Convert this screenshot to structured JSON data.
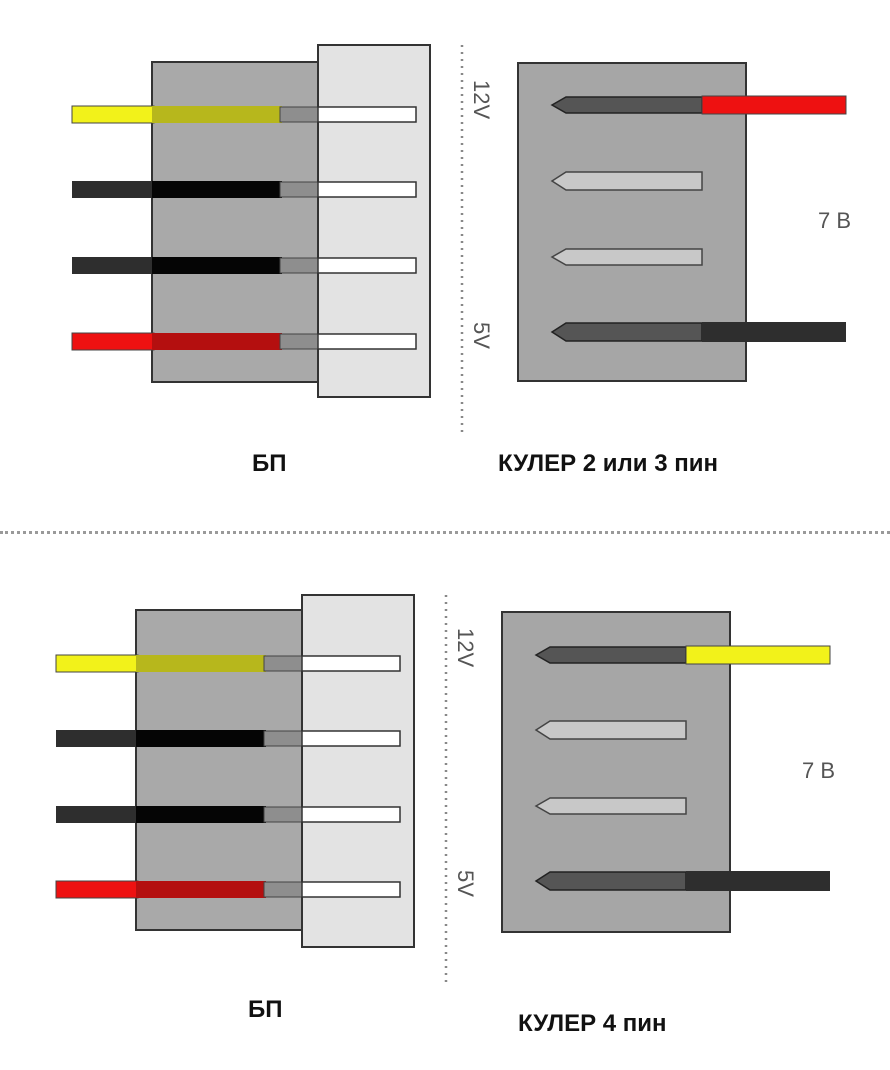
{
  "colors": {
    "yellow": "#f2f21a",
    "black_wire": "#2e2e2e",
    "red": "#ee1111",
    "psu_body": "#a9a9a9",
    "psu_sleeve": "#e3e3e3",
    "fan_body": "#a6a6a6"
  },
  "panels": [
    {
      "psu_caption": "БП",
      "fan_caption": "КУЛЕР 2 или 3 пин",
      "label_12v": "12V",
      "label_5v": "5V",
      "result_label": "7 В",
      "psu_wires": [
        "yellow",
        "black",
        "black",
        "red"
      ],
      "fan_wire_top": "red",
      "fan_wire_bottom": "black"
    },
    {
      "psu_caption": "БП",
      "fan_caption": "КУЛЕР 4 пин",
      "label_12v": "12V",
      "label_5v": "5V",
      "result_label": "7 В",
      "psu_wires": [
        "yellow",
        "black",
        "black",
        "red"
      ],
      "fan_wire_top": "yellow",
      "fan_wire_bottom": "black"
    }
  ]
}
